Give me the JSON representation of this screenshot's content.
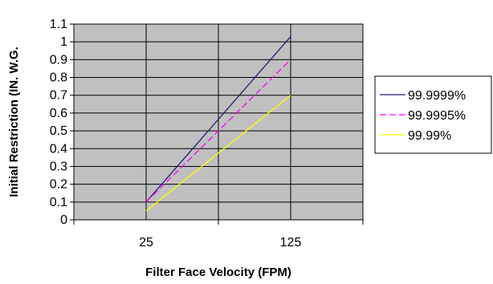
{
  "chart_data": {
    "type": "line",
    "title": "",
    "xlabel": "Filter Face Velocity (FPM)",
    "ylabel": "Initial Restriction (IN. W.G.",
    "categories": [
      "25",
      "125"
    ],
    "x": [
      25,
      125
    ],
    "ylim": [
      0,
      1.1
    ],
    "yticks": [
      "0",
      "0.1",
      "0.2",
      "0.3",
      "0.4",
      "0.5",
      "0.6",
      "0.7",
      "0.8",
      "0.9",
      "1",
      "1.1"
    ],
    "grid": true,
    "legend_position": "right",
    "plot_background": "#c0c0c0",
    "series": [
      {
        "name": "99.9999%",
        "values": [
          0.1,
          1.03
        ],
        "color": "#1f1f7a",
        "dash": "solid"
      },
      {
        "name": "99.9995%",
        "values": [
          0.1,
          0.9
        ],
        "color": "#ff00ff",
        "dash": "dashed"
      },
      {
        "name": "99.99%",
        "values": [
          0.05,
          0.7
        ],
        "color": "#ffff00",
        "dash": "solid"
      }
    ]
  }
}
